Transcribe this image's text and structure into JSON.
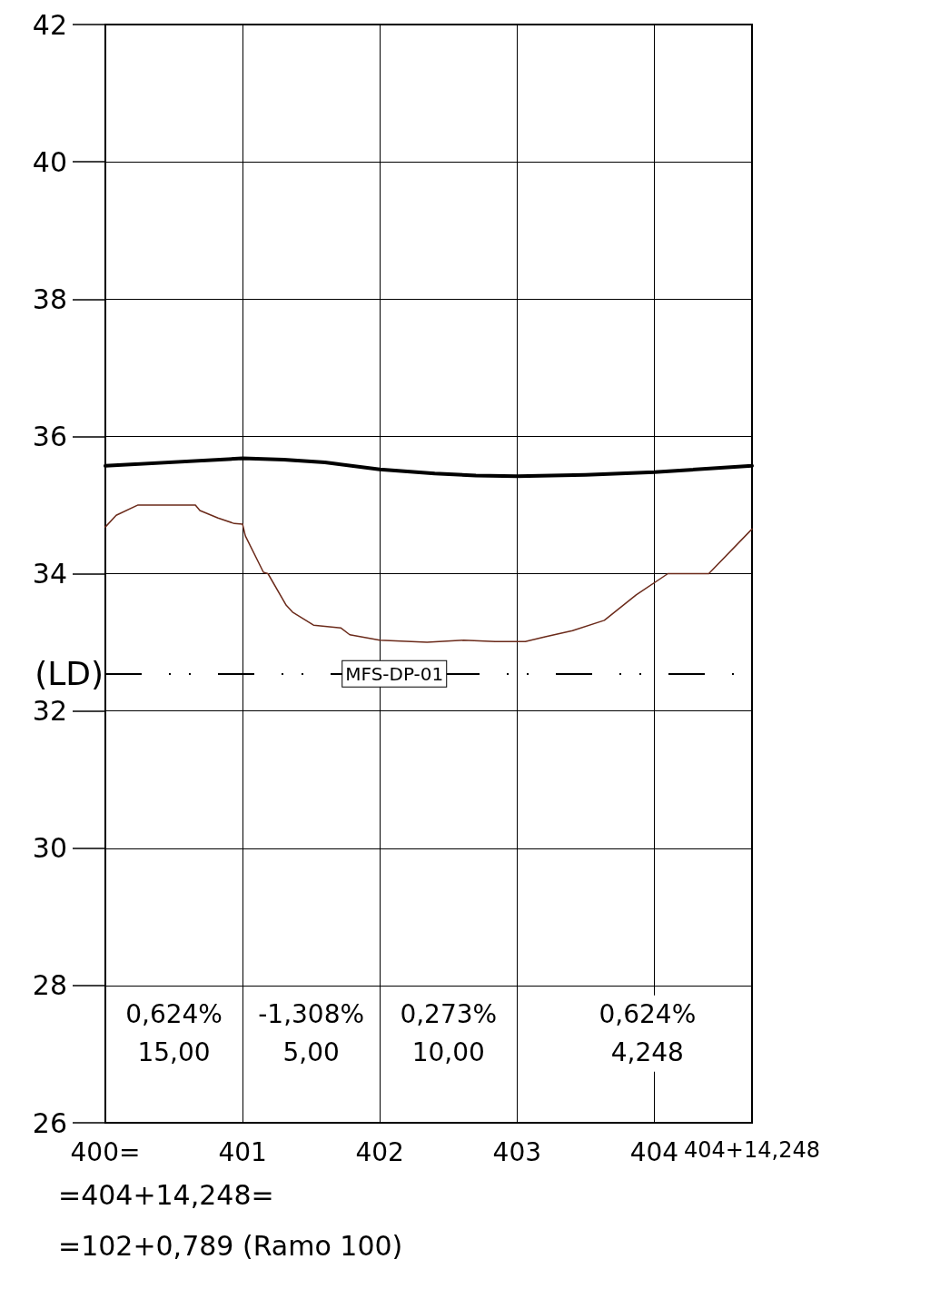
{
  "chart_data": {
    "type": "line",
    "series": [
      {
        "color": "#000000",
        "x": [
          400,
          401,
          401.3,
          401.6,
          402,
          402.4,
          402.7,
          403,
          403.5,
          404,
          404.712
        ],
        "values": [
          35.57,
          35.68,
          35.66,
          35.62,
          35.52,
          35.46,
          35.43,
          35.42,
          35.44,
          35.48,
          35.57
        ]
      },
      {
        "color": "#6b2a1a",
        "x": [
          400,
          400.079,
          400.238,
          400.656,
          400.689,
          400.821,
          400.94,
          401.0,
          401.02,
          401.152,
          401.185,
          401.318,
          401.364,
          401.517,
          401.715,
          401.781,
          402,
          402.344,
          402.609,
          402.841,
          403.06,
          403.205,
          403.404,
          403.636,
          403.868,
          404.099,
          404.397,
          404.712
        ],
        "values": [
          34.68,
          34.85,
          35.0,
          35.0,
          34.92,
          34.81,
          34.73,
          34.72,
          34.55,
          34.02,
          34.0,
          33.54,
          33.44,
          33.25,
          33.21,
          33.11,
          33.03,
          33.0,
          33.03,
          33.01,
          33.01,
          33.08,
          33.17,
          33.32,
          33.69,
          34.0,
          34.0,
          34.65
        ]
      }
    ],
    "xlim": [
      400,
      404.712
    ],
    "xticks": [
      {
        "value": 400,
        "label": "400="
      },
      401,
      402,
      403,
      404,
      {
        "value": 404.712,
        "label": "404+14,248"
      }
    ],
    "ylim": [
      26,
      42
    ],
    "yticks": [
      26,
      28,
      30,
      32,
      34,
      36,
      38,
      40,
      42
    ],
    "grid": true,
    "marker": "none",
    "line_style": "solid",
    "ref_lines": [
      {
        "axis": "y",
        "value": 32.54,
        "label": "MFS-DP-01",
        "color": "#000000",
        "line_style": "dashed"
      }
    ],
    "annotations": [
      {
        "text": "(LD)",
        "x": 400,
        "y": 32.54
      },
      "0,624%\n15,00",
      "-1,308%\n5,00",
      "0,273%\n10,00",
      "0,624%\n4,248",
      "=404+14,248=",
      "=102+0,789 (Ramo 100)"
    ]
  }
}
